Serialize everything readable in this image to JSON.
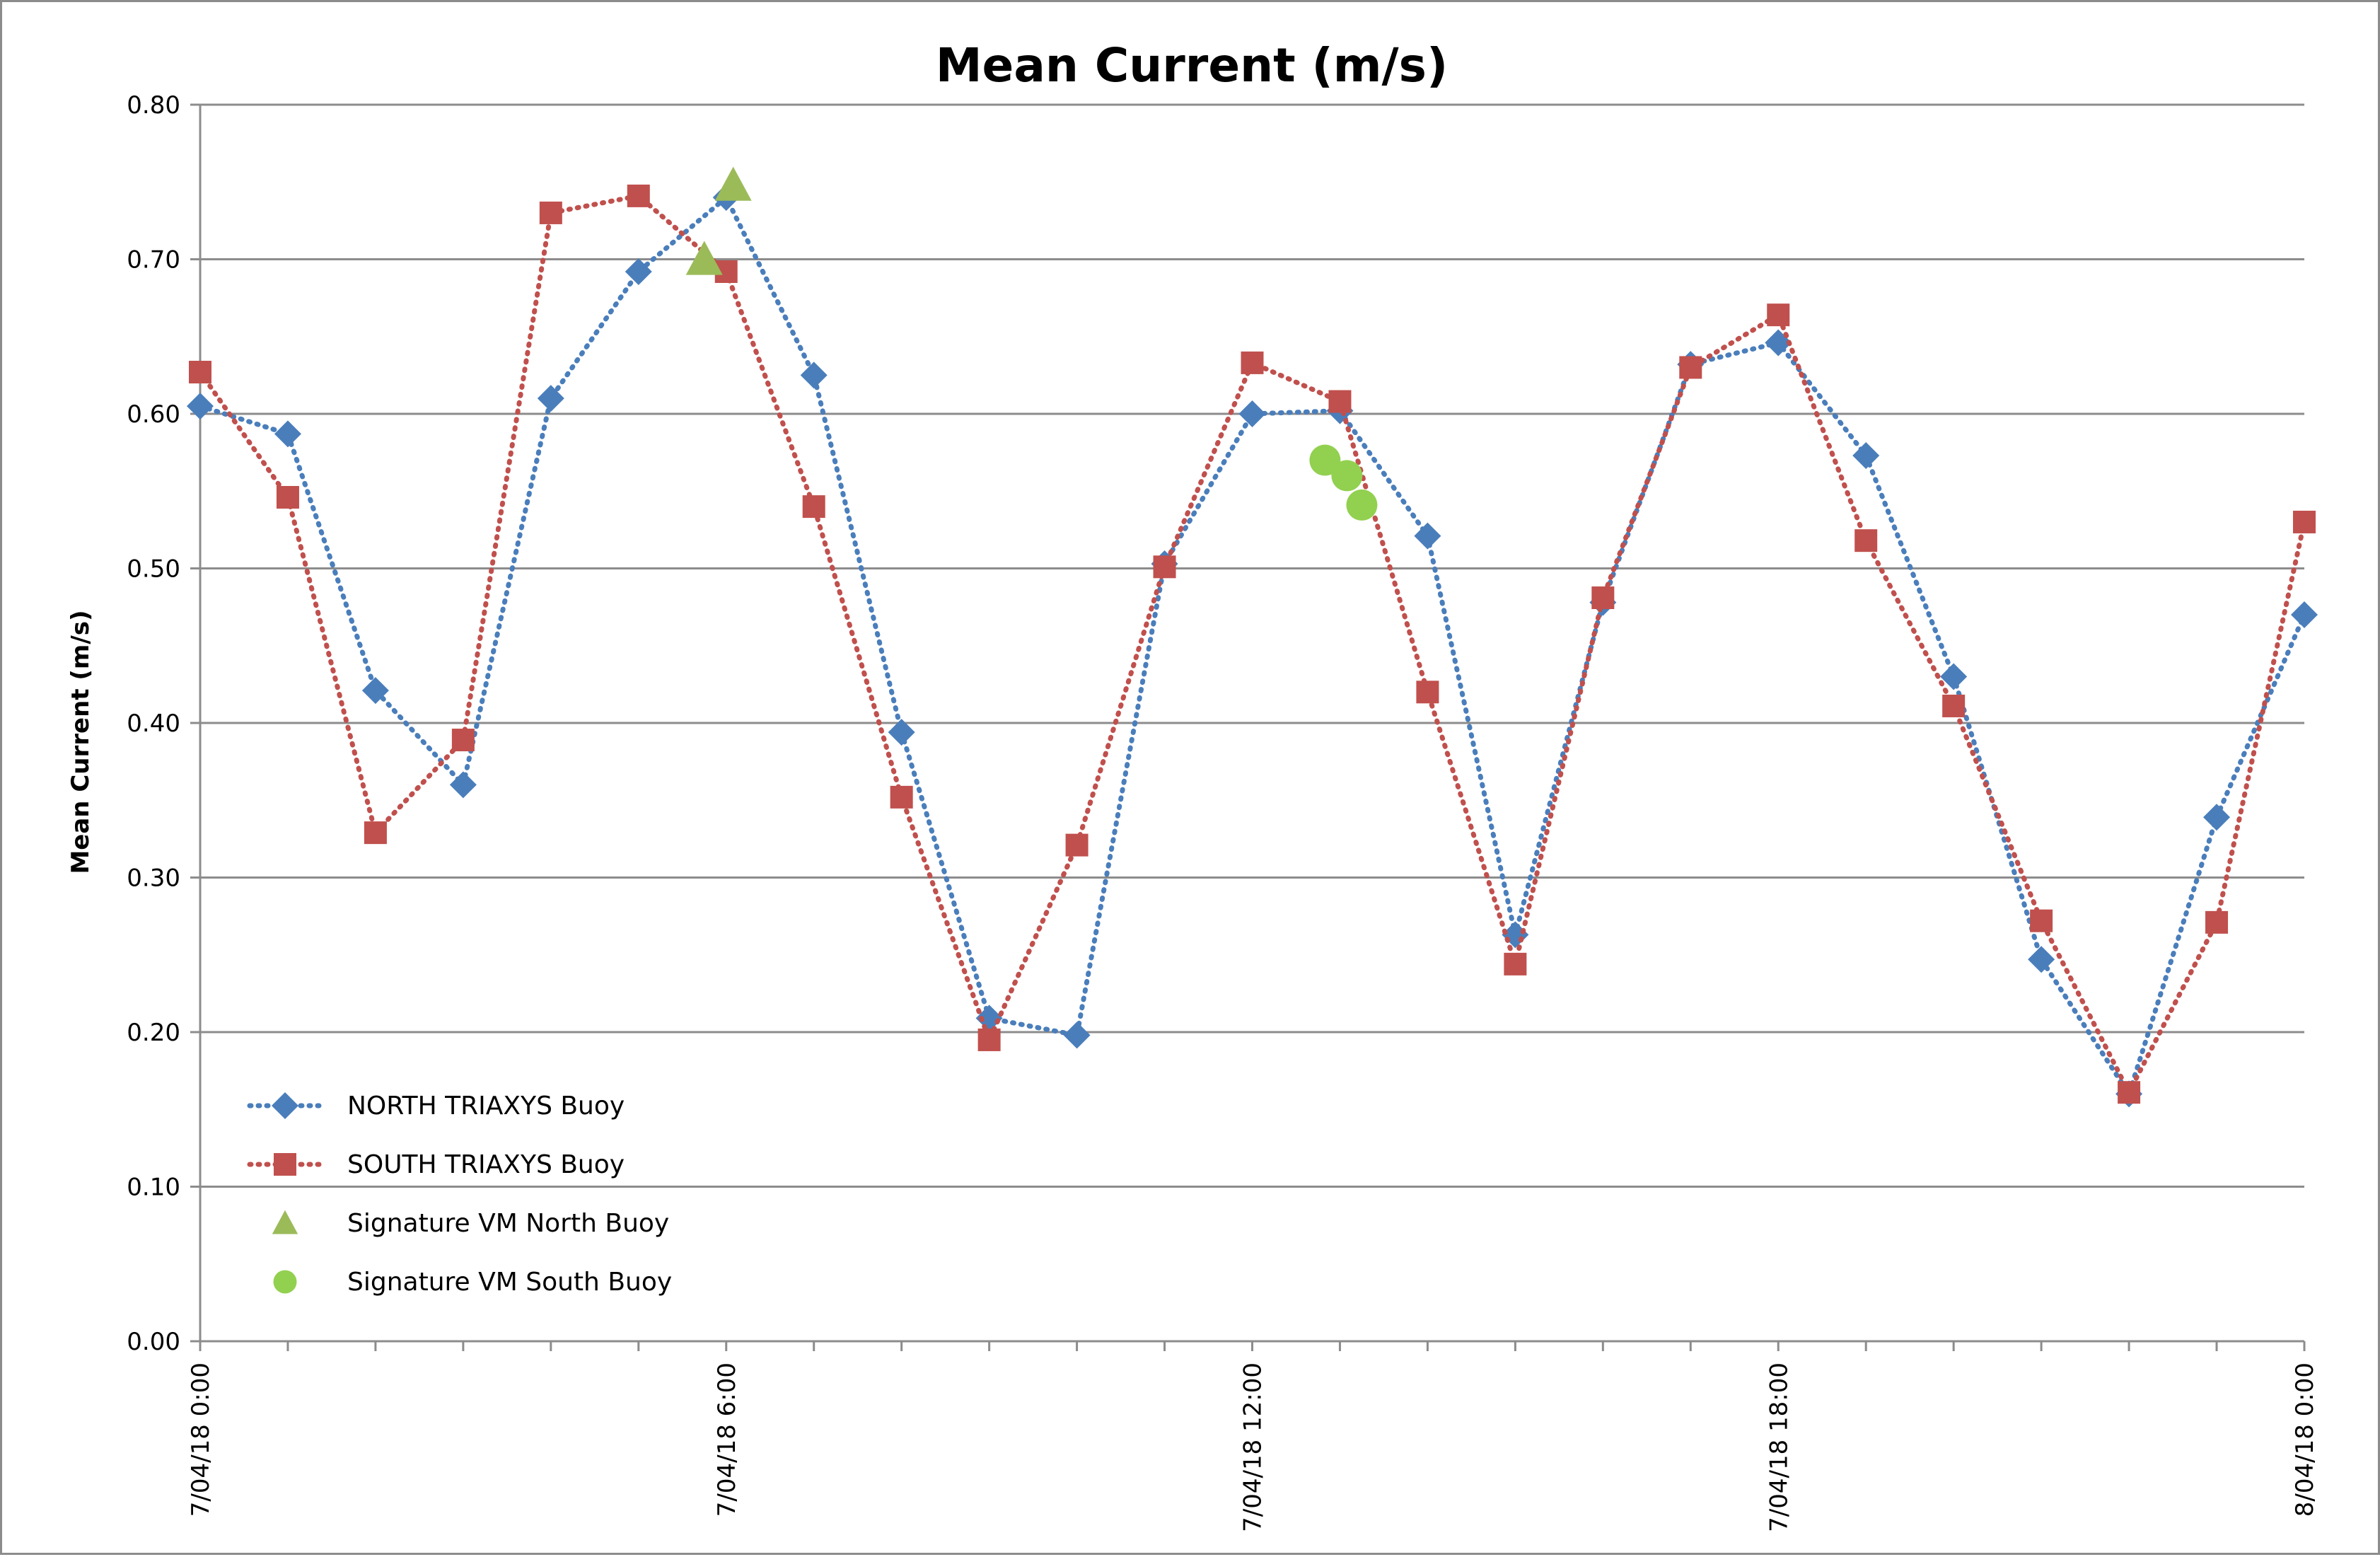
{
  "chart_data": {
    "type": "line",
    "title": "Mean Current (m/s)",
    "ylabel": "Mean Current (m/s)",
    "xlabel": "",
    "ylim": [
      0,
      0.8
    ],
    "yticks": [
      "0.00",
      "0.10",
      "0.20",
      "0.30",
      "0.40",
      "0.50",
      "0.60",
      "0.70",
      "0.80"
    ],
    "xlim_hours": [
      0,
      24
    ],
    "xticks": [
      {
        "hour": 0,
        "label": "7/04/18 0:00"
      },
      {
        "hour": 6,
        "label": "7/04/18 6:00"
      },
      {
        "hour": 12,
        "label": "7/04/18 12:00"
      },
      {
        "hour": 18,
        "label": "7/04/18 18:00"
      },
      {
        "hour": 24,
        "label": "8/04/18 0:00"
      }
    ],
    "grid": true,
    "legend_position": "bottom-left",
    "series": [
      {
        "name": "NORTH TRIAXYS Buoy",
        "color": "#4a7ebb",
        "marker": "diamond",
        "line": "dotted",
        "x_hours": [
          0,
          1,
          2,
          3,
          4,
          5,
          6,
          7,
          8,
          9,
          10,
          11,
          12,
          13,
          14,
          15,
          16,
          17,
          18,
          19,
          20,
          21,
          22,
          23,
          24
        ],
        "values": [
          0.605,
          0.587,
          0.421,
          0.36,
          0.61,
          0.692,
          0.74,
          0.625,
          0.394,
          0.209,
          0.198,
          0.503,
          0.6,
          0.602,
          0.521,
          0.263,
          0.478,
          0.632,
          0.646,
          0.573,
          0.43,
          0.247,
          0.16,
          0.339,
          0.47
        ]
      },
      {
        "name": "SOUTH TRIAXYS Buoy",
        "color": "#c0504d",
        "marker": "square",
        "line": "dotted",
        "x_hours": [
          0,
          1,
          2,
          3,
          4,
          5,
          6,
          7,
          8,
          9,
          10,
          11,
          12,
          13,
          14,
          15,
          16,
          17,
          18,
          19,
          20,
          21,
          22,
          23,
          24
        ],
        "values": [
          0.627,
          0.546,
          0.329,
          0.389,
          0.73,
          0.741,
          0.692,
          0.54,
          0.352,
          0.195,
          0.321,
          0.501,
          0.633,
          0.608,
          0.42,
          0.244,
          0.481,
          0.63,
          0.664,
          0.518,
          0.411,
          0.272,
          0.161,
          0.271,
          0.53
        ]
      },
      {
        "name": "Signature VM North Buoy",
        "color": "#9bbb59",
        "marker": "triangle",
        "line": "none",
        "x_hours": [
          5.75,
          6.08
        ],
        "values": [
          0.7,
          0.748
        ]
      },
      {
        "name": "Signature VM South Buoy",
        "color": "#92d050",
        "marker": "circle",
        "line": "none",
        "x_hours": [
          12.83,
          13.08,
          13.25
        ],
        "values": [
          0.57,
          0.56,
          0.541
        ]
      }
    ]
  }
}
